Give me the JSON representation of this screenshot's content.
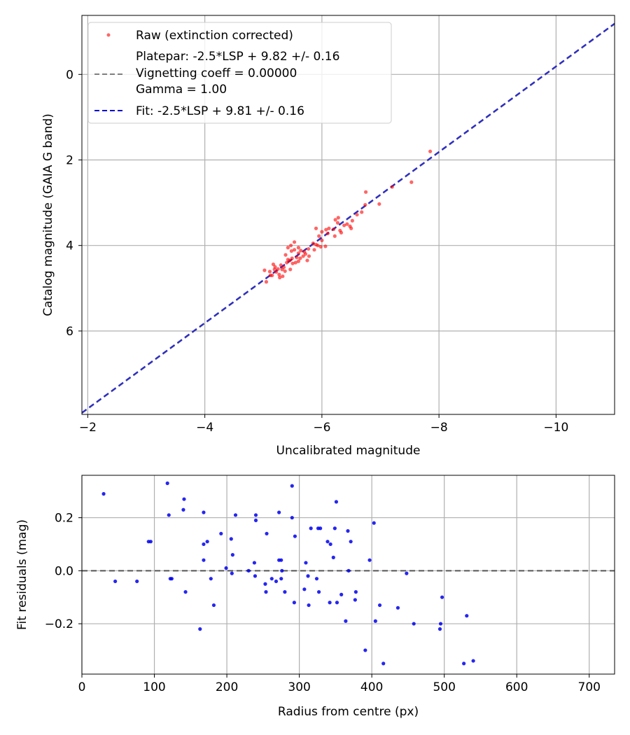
{
  "chart_data": [
    {
      "type": "scatter",
      "xlabel": "Uncalibrated magnitude",
      "ylabel": "Catalog magnitude (GAIA G band)",
      "xlim": [
        -1.9,
        -11.0
      ],
      "ylim": [
        7.95,
        -1.38
      ],
      "xticks": [
        -2,
        -4,
        -6,
        -8,
        -10
      ],
      "xtick_labels": [
        "−2",
        "−4",
        "−6",
        "−8",
        "−10"
      ],
      "yticks": [
        0,
        2,
        4,
        6
      ],
      "ytick_labels": [
        "0",
        "2",
        "4",
        "6"
      ],
      "grid": true,
      "legend_position": "upper-left",
      "legend": [
        {
          "label": "Raw (extinction corrected)",
          "kind": "marker",
          "color": "#ff0000"
        },
        {
          "label": "Platepar: -2.5*LSP + 9.82 +/- 0.16",
          "kind": "line",
          "color": "#808080",
          "dash": true
        },
        {
          "label": "Vignetting coeff = 0.00000",
          "kind": "text"
        },
        {
          "label": "Gamma = 1.00",
          "kind": "text"
        },
        {
          "label": "Fit: -2.5*LSP + 9.81 +/- 0.16",
          "kind": "line",
          "color": "#0000cc",
          "dash": true
        }
      ],
      "lines": [
        {
          "name": "Platepar",
          "slope": 1.0,
          "intercept": 9.82,
          "color": "#808080",
          "dashed": true
        },
        {
          "name": "Fit",
          "slope": 1.0,
          "intercept": 9.81,
          "color": "#2a2acc",
          "dashed": true
        }
      ],
      "series": [
        {
          "name": "Raw (extinction corrected)",
          "color": "#ff0000",
          "points": [
            [
              -7.85,
              1.8
            ],
            [
              -7.2,
              2.63
            ],
            [
              -7.53,
              2.52
            ],
            [
              -6.75,
              2.75
            ],
            [
              -6.74,
              3.05
            ],
            [
              -6.98,
              3.03
            ],
            [
              -6.6,
              3.28
            ],
            [
              -6.68,
              3.22
            ],
            [
              -6.52,
              3.42
            ],
            [
              -6.43,
              3.5
            ],
            [
              -6.38,
              3.53
            ],
            [
              -6.28,
              3.35
            ],
            [
              -6.27,
              3.47
            ],
            [
              -6.31,
              3.65
            ],
            [
              -6.33,
              3.7
            ],
            [
              -6.22,
              3.78
            ],
            [
              -6.12,
              3.6
            ],
            [
              -6.07,
              3.63
            ],
            [
              -6.0,
              3.68
            ],
            [
              -5.95,
              3.78
            ],
            [
              -6.0,
              3.88
            ],
            [
              -5.9,
              3.6
            ],
            [
              -5.85,
              3.95
            ],
            [
              -6.06,
              4.02
            ],
            [
              -5.93,
              4.0
            ],
            [
              -5.77,
              4.08
            ],
            [
              -5.87,
              4.1
            ],
            [
              -5.72,
              4.2
            ],
            [
              -5.68,
              4.25
            ],
            [
              -5.64,
              4.12
            ],
            [
              -5.6,
              4.18
            ],
            [
              -5.57,
              4.28
            ],
            [
              -5.53,
              4.1
            ],
            [
              -5.53,
              3.92
            ],
            [
              -5.47,
              4.0
            ],
            [
              -5.49,
              4.3
            ],
            [
              -5.45,
              4.35
            ],
            [
              -5.42,
              4.33
            ],
            [
              -5.4,
              4.4
            ],
            [
              -5.38,
              4.22
            ],
            [
              -5.48,
              4.13
            ],
            [
              -5.46,
              4.56
            ],
            [
              -5.6,
              4.37
            ],
            [
              -5.5,
              4.42
            ],
            [
              -5.35,
              4.51
            ],
            [
              -5.32,
              4.56
            ],
            [
              -5.3,
              4.46
            ],
            [
              -5.27,
              4.68
            ],
            [
              -5.22,
              4.62
            ],
            [
              -5.2,
              4.5
            ],
            [
              -5.17,
              4.44
            ],
            [
              -5.19,
              4.56
            ],
            [
              -5.11,
              4.61
            ],
            [
              -5.05,
              4.85
            ],
            [
              -5.12,
              4.7
            ],
            [
              -5.25,
              4.55
            ],
            [
              -5.33,
              4.72
            ],
            [
              -5.02,
              4.58
            ],
            [
              -5.78,
              4.25
            ],
            [
              -5.63,
              4.3
            ],
            [
              -5.9,
              3.98
            ],
            [
              -6.2,
              3.62
            ],
            [
              -6.5,
              3.6
            ],
            [
              -5.42,
              4.05
            ],
            [
              -5.55,
              4.4
            ],
            [
              -5.7,
              4.15
            ],
            [
              -5.28,
              4.75
            ],
            [
              -5.15,
              4.7
            ],
            [
              -6.1,
              3.72
            ],
            [
              -5.75,
              4.35
            ],
            [
              -6.48,
              3.55
            ],
            [
              -5.6,
              4.05
            ],
            [
              -5.37,
              4.6
            ],
            [
              -5.98,
              4.03
            ],
            [
              -6.23,
              3.4
            ]
          ]
        }
      ]
    },
    {
      "type": "scatter",
      "xlabel": "Radius from centre (px)",
      "ylabel": "Fit residuals (mag)",
      "xlim": [
        0,
        735
      ],
      "ylim": [
        -0.39,
        0.36
      ],
      "xticks": [
        0,
        100,
        200,
        300,
        400,
        500,
        600,
        700
      ],
      "xtick_labels": [
        "0",
        "100",
        "200",
        "300",
        "400",
        "500",
        "600",
        "700"
      ],
      "yticks": [
        -0.2,
        0.0,
        0.2
      ],
      "ytick_labels": [
        "−0.2",
        "0.0",
        "0.2"
      ],
      "grid": true,
      "zero_line": {
        "value": 0.0,
        "color": "#555555",
        "dashed": true
      },
      "series": [
        {
          "name": "Residuals",
          "color": "#0000ee",
          "points": [
            [
              30,
              0.29
            ],
            [
              46,
              -0.04
            ],
            [
              76,
              -0.04
            ],
            [
              92,
              0.11
            ],
            [
              95,
              0.11
            ],
            [
              118,
              0.33
            ],
            [
              120,
              0.21
            ],
            [
              122,
              -0.03
            ],
            [
              124,
              -0.03
            ],
            [
              140,
              0.23
            ],
            [
              141,
              0.27
            ],
            [
              143,
              -0.08
            ],
            [
              163,
              -0.22
            ],
            [
              168,
              0.22
            ],
            [
              168,
              0.1
            ],
            [
              168,
              0.04
            ],
            [
              173,
              0.11
            ],
            [
              178,
              -0.03
            ],
            [
              182,
              -0.13
            ],
            [
              192,
              0.14
            ],
            [
              199,
              0.01
            ],
            [
              206,
              0.12
            ],
            [
              207,
              -0.01
            ],
            [
              208,
              0.06
            ],
            [
              212,
              0.21
            ],
            [
              230,
              0.0
            ],
            [
              238,
              0.03
            ],
            [
              239,
              -0.02
            ],
            [
              240,
              0.21
            ],
            [
              240,
              0.19
            ],
            [
              253,
              -0.05
            ],
            [
              254,
              -0.08
            ],
            [
              255,
              0.14
            ],
            [
              262,
              -0.03
            ],
            [
              268,
              -0.04
            ],
            [
              272,
              0.22
            ],
            [
              272,
              0.04
            ],
            [
              275,
              -0.03
            ],
            [
              275,
              0.04
            ],
            [
              276,
              0.0
            ],
            [
              280,
              -0.08
            ],
            [
              290,
              0.32
            ],
            [
              290,
              0.2
            ],
            [
              293,
              -0.12
            ],
            [
              294,
              0.13
            ],
            [
              307,
              -0.07
            ],
            [
              309,
              0.03
            ],
            [
              312,
              -0.02
            ],
            [
              313,
              -0.13
            ],
            [
              316,
              0.16
            ],
            [
              324,
              -0.03
            ],
            [
              326,
              0.16
            ],
            [
              327,
              -0.08
            ],
            [
              329,
              0.16
            ],
            [
              339,
              0.11
            ],
            [
              342,
              -0.12
            ],
            [
              343,
              0.1
            ],
            [
              347,
              0.05
            ],
            [
              349,
              0.16
            ],
            [
              351,
              0.26
            ],
            [
              352,
              -0.12
            ],
            [
              358,
              -0.09
            ],
            [
              364,
              -0.19
            ],
            [
              367,
              0.15
            ],
            [
              368,
              0.0
            ],
            [
              371,
              0.11
            ],
            [
              377,
              -0.11
            ],
            [
              378,
              -0.08
            ],
            [
              391,
              -0.3
            ],
            [
              397,
              0.04
            ],
            [
              403,
              0.18
            ],
            [
              405,
              -0.19
            ],
            [
              411,
              -0.13
            ],
            [
              416,
              -0.35
            ],
            [
              436,
              -0.14
            ],
            [
              448,
              -0.01
            ],
            [
              458,
              -0.2
            ],
            [
              494,
              -0.22
            ],
            [
              495,
              -0.2
            ],
            [
              497,
              -0.1
            ],
            [
              527,
              -0.35
            ],
            [
              531,
              -0.17
            ],
            [
              540,
              -0.34
            ]
          ]
        }
      ]
    }
  ]
}
